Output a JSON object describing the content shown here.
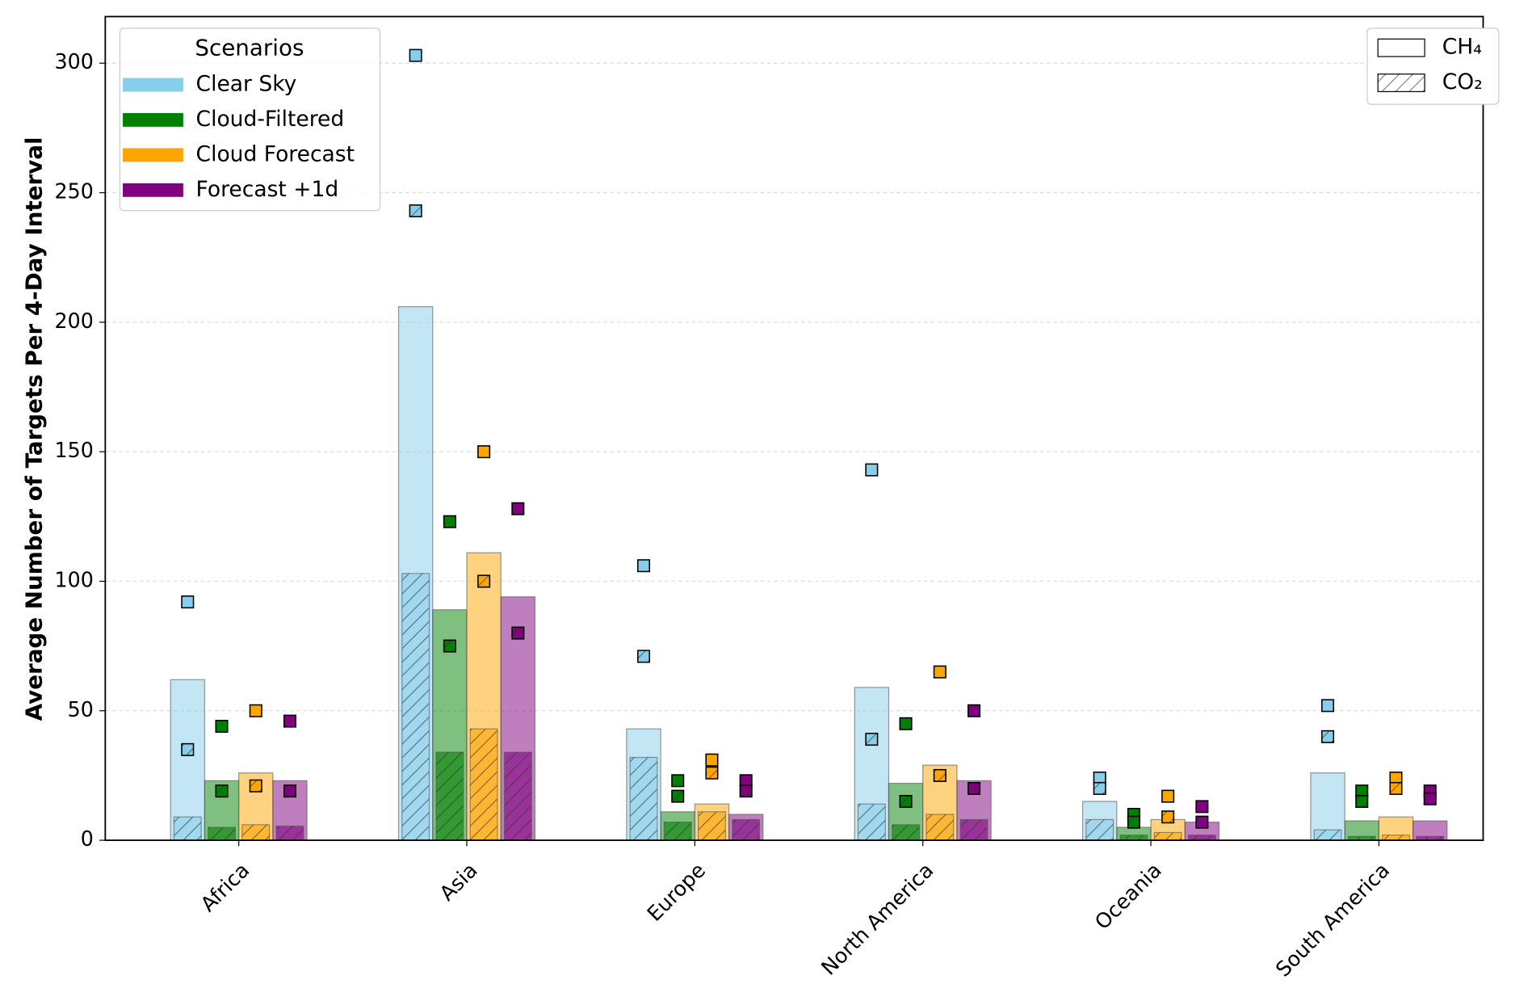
{
  "chart_data": {
    "type": "grouped-bar-with-markers",
    "ylabel": "Average Number of Targets Per 4-Day Interval",
    "categories": [
      "Africa",
      "Asia",
      "Europe",
      "North America",
      "Oceania",
      "South America"
    ],
    "legend_title": "Scenarios",
    "gases": [
      "CH₄",
      "CO₂"
    ],
    "series": [
      {
        "name": "Clear Sky",
        "color": "#87ceeb",
        "ch4_bars": [
          62,
          206,
          43,
          59,
          15,
          26
        ],
        "co2_bars": [
          9,
          103,
          32,
          14,
          8,
          4
        ],
        "ch4_points": [
          92,
          303,
          106,
          143,
          24,
          52
        ],
        "co2_points": [
          35,
          243,
          71,
          39,
          20,
          40
        ]
      },
      {
        "name": "Cloud-Filtered",
        "color": "#008000",
        "ch4_bars": [
          23,
          89,
          11,
          22,
          5,
          7.5
        ],
        "co2_bars": [
          5,
          34,
          7,
          6,
          2,
          1.5
        ],
        "ch4_points": [
          44,
          123,
          23,
          45,
          10,
          19
        ],
        "co2_points": [
          19,
          75,
          17,
          15,
          7,
          15
        ]
      },
      {
        "name": "Cloud Forecast",
        "color": "#ffa500",
        "ch4_bars": [
          26,
          111,
          14,
          29,
          8,
          9
        ],
        "co2_bars": [
          6,
          43,
          11,
          10,
          3,
          2
        ],
        "ch4_points": [
          50,
          150,
          31,
          65,
          17,
          24
        ],
        "co2_points": [
          21,
          100,
          26,
          25,
          9,
          20
        ]
      },
      {
        "name": "Forecast +1d",
        "color": "#800080",
        "ch4_bars": [
          23,
          94,
          10,
          23,
          7,
          7.5
        ],
        "co2_bars": [
          5.5,
          34,
          8,
          8,
          2,
          1.5
        ],
        "ch4_points": [
          46,
          128,
          23,
          50,
          13,
          19
        ],
        "co2_points": [
          19,
          80,
          19,
          20,
          7,
          16
        ]
      }
    ],
    "ylim": [
      0,
      318
    ],
    "yticks": [
      0,
      50,
      100,
      150,
      200,
      250,
      300
    ],
    "grid": true
  }
}
